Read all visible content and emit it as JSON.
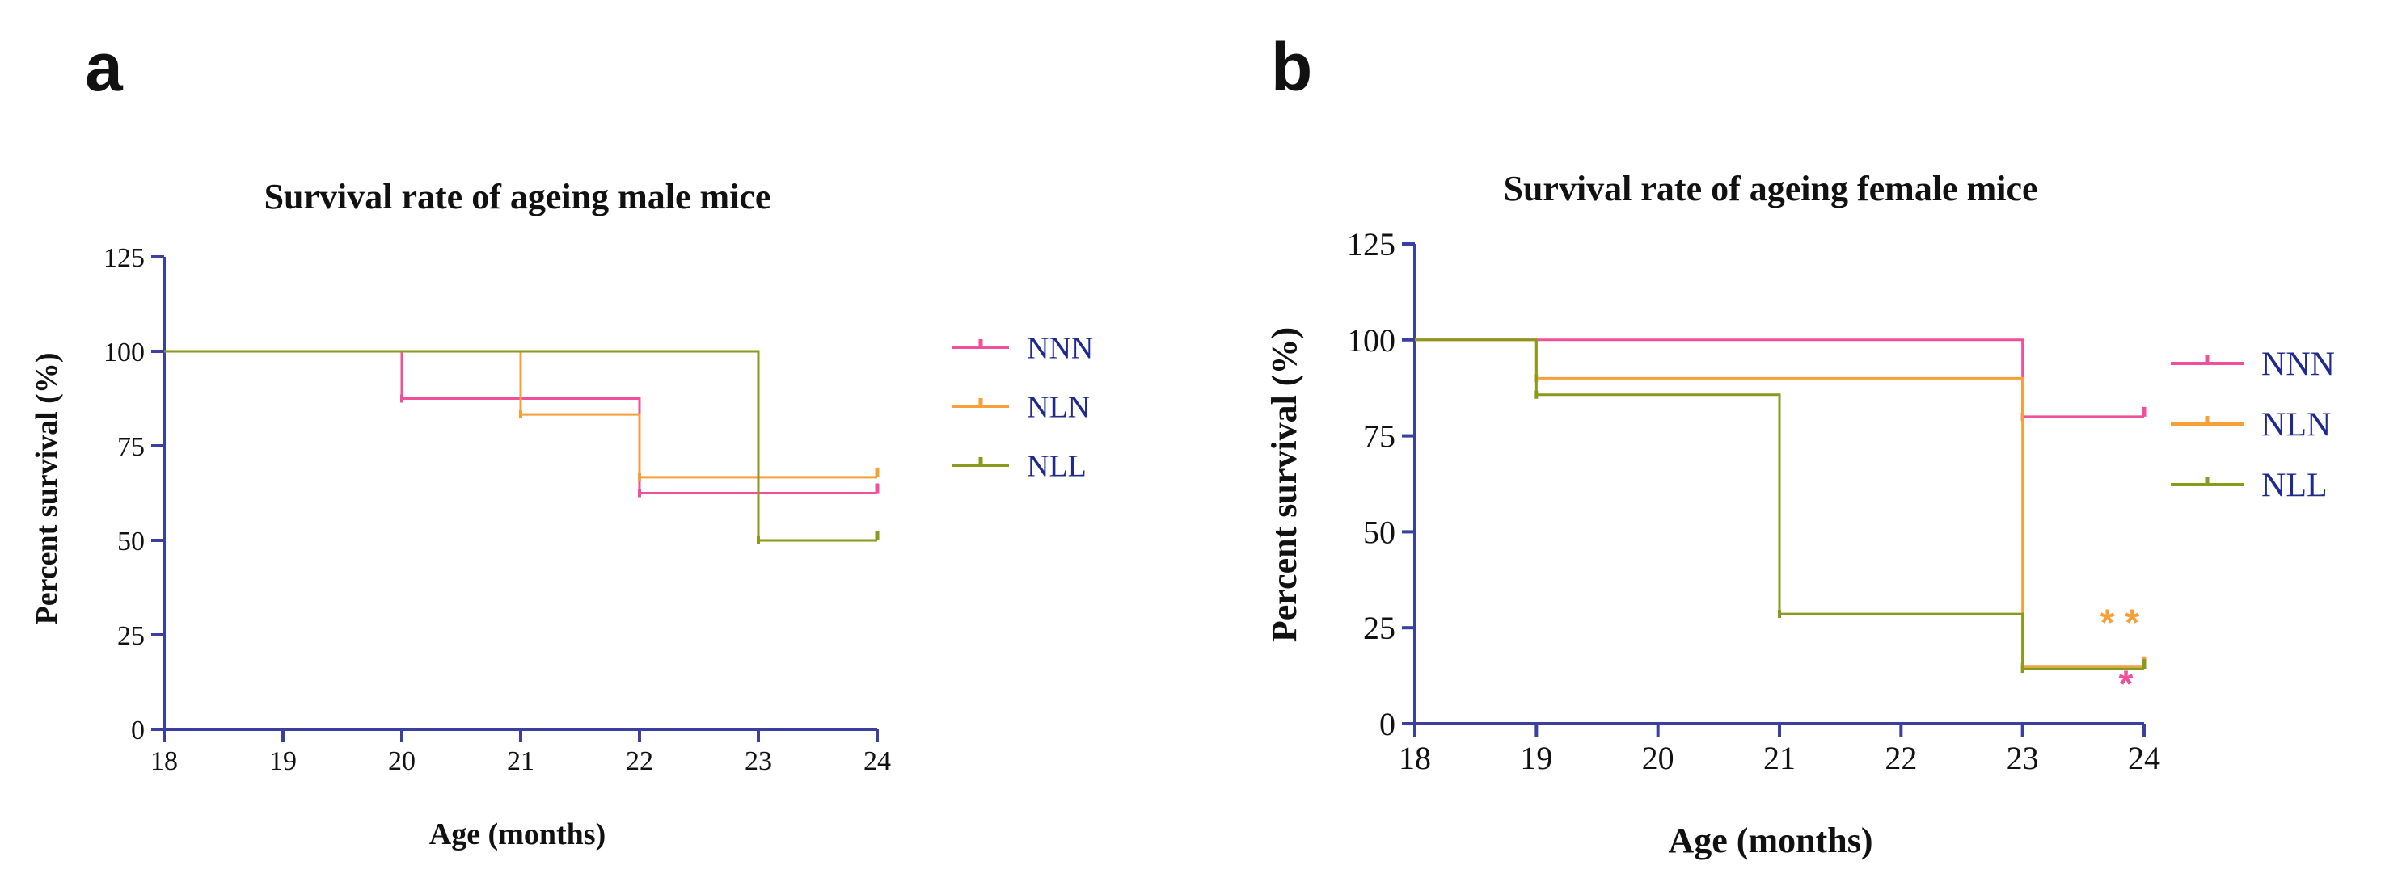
{
  "chart_data": [
    {
      "panel": "a",
      "type": "line",
      "step": true,
      "title": "Survival rate of ageing male mice",
      "xlabel": "Age (months)",
      "ylabel": "Percent survival (%)",
      "xlim": [
        18,
        24
      ],
      "ylim": [
        0,
        125
      ],
      "xticks": [
        18,
        19,
        20,
        21,
        22,
        23,
        24
      ],
      "yticks": [
        0,
        25,
        50,
        75,
        100,
        125
      ],
      "legend_position": "right",
      "axis_color": "#3b3fa0",
      "series": [
        {
          "name": "NNN",
          "color": "#f0509a",
          "points": [
            [
              18,
              100
            ],
            [
              20,
              100
            ],
            [
              20,
              87.5
            ],
            [
              22,
              87.5
            ],
            [
              22,
              62.5
            ],
            [
              24,
              62.5
            ]
          ],
          "censor": [
            [
              24,
              62.5
            ]
          ]
        },
        {
          "name": "NLN",
          "color": "#f7a03a",
          "points": [
            [
              18,
              100
            ],
            [
              21,
              100
            ],
            [
              21,
              83.3
            ],
            [
              22,
              83.3
            ],
            [
              22,
              66.7
            ],
            [
              24,
              66.7
            ]
          ],
          "censor": [
            [
              24,
              66.7
            ]
          ]
        },
        {
          "name": "NLL",
          "color": "#8a9a1e",
          "points": [
            [
              18,
              100
            ],
            [
              23,
              100
            ],
            [
              23,
              50
            ],
            [
              24,
              50
            ]
          ],
          "censor": [
            [
              24,
              50
            ]
          ]
        }
      ],
      "annotations": []
    },
    {
      "panel": "b",
      "type": "line",
      "step": true,
      "title": "Survival rate of ageing female mice",
      "xlabel": "Age (months)",
      "ylabel": "Percent survival (%)",
      "xlim": [
        18,
        24
      ],
      "ylim": [
        0,
        125
      ],
      "xticks": [
        18,
        19,
        20,
        21,
        22,
        23,
        24
      ],
      "yticks": [
        0,
        25,
        50,
        75,
        100,
        125
      ],
      "legend_position": "right",
      "axis_color": "#3b3fa0",
      "series": [
        {
          "name": "NNN",
          "color": "#f0509a",
          "points": [
            [
              18,
              100
            ],
            [
              23,
              100
            ],
            [
              23,
              80
            ],
            [
              24,
              80
            ]
          ],
          "censor": [
            [
              24,
              80
            ]
          ]
        },
        {
          "name": "NLN",
          "color": "#f7a03a",
          "points": [
            [
              18,
              100
            ],
            [
              19,
              100
            ],
            [
              19,
              90
            ],
            [
              23,
              90
            ],
            [
              23,
              15
            ],
            [
              24,
              15
            ]
          ],
          "censor": [
            [
              24,
              15
            ]
          ]
        },
        {
          "name": "NLL",
          "color": "#8a9a1e",
          "points": [
            [
              18,
              100
            ],
            [
              19,
              100
            ],
            [
              19,
              85.7
            ],
            [
              21,
              85.7
            ],
            [
              21,
              28.6
            ],
            [
              23,
              28.6
            ],
            [
              23,
              14.3
            ],
            [
              24,
              14.3
            ]
          ],
          "censor": [
            [
              24,
              14.3
            ]
          ]
        }
      ],
      "annotations": [
        {
          "text": "* *",
          "color": "#f7a03a",
          "x": 23.8,
          "y": 23
        },
        {
          "text": "*",
          "color": "#f0509a",
          "x": 23.85,
          "y": 7
        }
      ]
    }
  ]
}
